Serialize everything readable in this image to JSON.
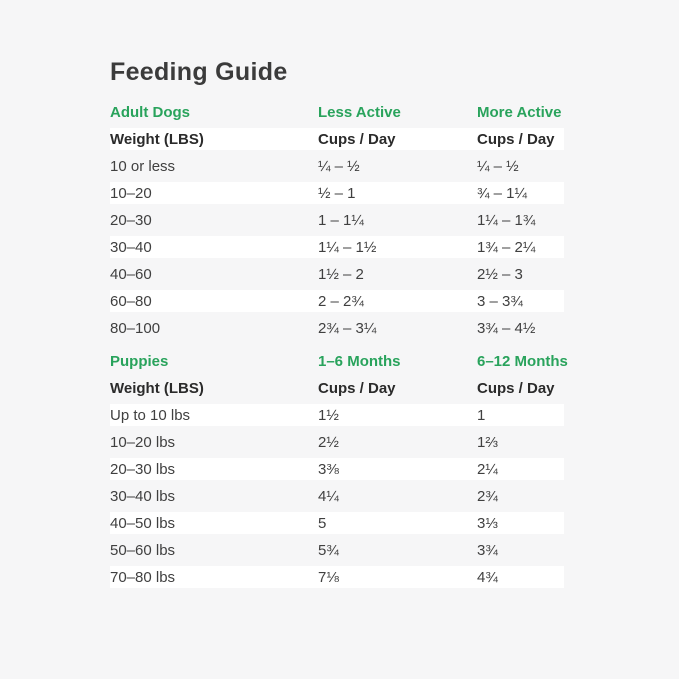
{
  "title": "Feeding Guide",
  "colors": {
    "accent_green": "#29a35c",
    "page_background": "#f6f6f7",
    "row_stripe": "#ffffff",
    "text_dark": "#3b3b3b"
  },
  "sections": [
    {
      "header": {
        "col1": "Adult Dogs",
        "col2": "Less Active",
        "col3": "More Active"
      },
      "subheader": {
        "col1": "Weight (LBS)",
        "col2": "Cups / Day",
        "col3": "Cups / Day"
      },
      "rows": [
        {
          "weight": "10 or less",
          "less": "¼ – ½",
          "more": "¼ – ½"
        },
        {
          "weight": "10–20",
          "less": "½ – 1",
          "more": "¾ – 1¼"
        },
        {
          "weight": "20–30",
          "less": "1 – 1¼",
          "more": "1¼ – 1¾"
        },
        {
          "weight": "30–40",
          "less": "1¼ – 1½",
          "more": "1¾ – 2¼"
        },
        {
          "weight": "40–60",
          "less": "1½ – 2",
          "more": "2½ – 3"
        },
        {
          "weight": "60–80",
          "less": "2 – 2¾",
          "more": "3 – 3¾"
        },
        {
          "weight": "80–100",
          "less": "2¾ – 3¼",
          "more": "3¾ – 4½"
        }
      ]
    },
    {
      "header": {
        "col1": "Puppies",
        "col2": "1–6 Months",
        "col3": "6–12 Months"
      },
      "subheader": {
        "col1": "Weight (LBS)",
        "col2": "Cups / Day",
        "col3": "Cups / Day"
      },
      "rows": [
        {
          "weight": "Up to 10 lbs",
          "less": "1½",
          "more": "1"
        },
        {
          "weight": "10–20 lbs",
          "less": "2½",
          "more": "1⅔"
        },
        {
          "weight": "20–30 lbs",
          "less": "3⅜",
          "more": "2¼"
        },
        {
          "weight": "30–40 lbs",
          "less": "4¼",
          "more": "2¾"
        },
        {
          "weight": "40–50 lbs",
          "less": "5",
          "more": "3⅓"
        },
        {
          "weight": "50–60 lbs",
          "less": "5¾",
          "more": "3¾"
        },
        {
          "weight": "70–80 lbs",
          "less": "7⅛",
          "more": "4¾"
        }
      ]
    }
  ]
}
